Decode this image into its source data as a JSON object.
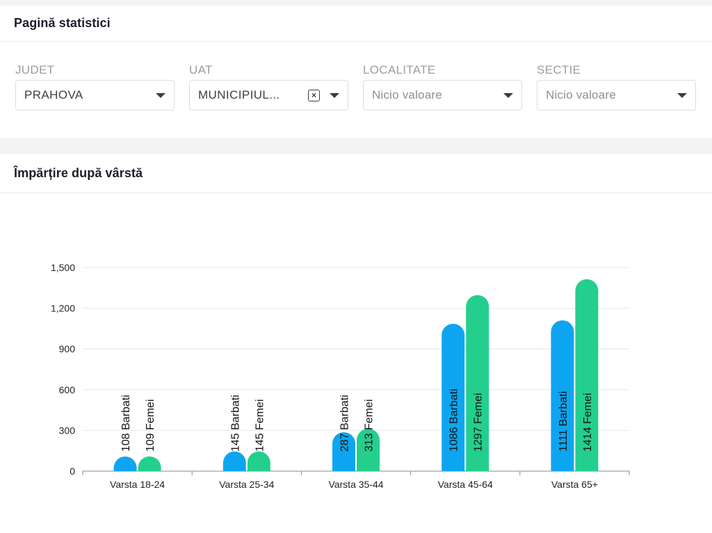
{
  "header": {
    "title": "Pagină statistici"
  },
  "filters": [
    {
      "label": "JUDET",
      "value": "PRAHOVA",
      "placeholder": false,
      "clearable": false
    },
    {
      "label": "UAT",
      "value": "MUNICIPIUL...",
      "placeholder": false,
      "clearable": true
    },
    {
      "label": "LOCALITATE",
      "value": "Nicio valoare",
      "placeholder": true,
      "clearable": false
    },
    {
      "label": "SECTIE",
      "value": "Nicio valoare",
      "placeholder": true,
      "clearable": false
    }
  ],
  "icons": {
    "dropdown": "chevron-down-icon",
    "clear": "clear-x-icon"
  },
  "chart_section": {
    "title": "Împărțire după vârstă"
  },
  "chart_data": {
    "type": "bar",
    "categories": [
      "Varsta 18-24",
      "Varsta 25-34",
      "Varsta 35-44",
      "Varsta 45-64",
      "Varsta 65+"
    ],
    "series": [
      {
        "name": "Barbati",
        "color": "#0ea5f0",
        "values": [
          108,
          145,
          287,
          1086,
          1111
        ]
      },
      {
        "name": "Femei",
        "color": "#24cf8e",
        "values": [
          109,
          145,
          313,
          1297,
          1414
        ]
      }
    ],
    "bar_labels": {
      "Barbati": [
        "108 Barbati",
        "145 Barbati",
        "287 Barbati",
        "1086 Barbati",
        "1111 Barbati"
      ],
      "Femei": [
        "109 Femei",
        "145 Femei",
        "313 Femei",
        "1297 Femei",
        "1414 Femei"
      ]
    },
    "yticks": [
      "0",
      "300",
      "600",
      "900",
      "1,200",
      "1,500"
    ],
    "ytick_values": [
      0,
      300,
      600,
      900,
      1200,
      1500
    ],
    "ylim": [
      0,
      1500
    ],
    "grid": true,
    "legend": "none"
  }
}
